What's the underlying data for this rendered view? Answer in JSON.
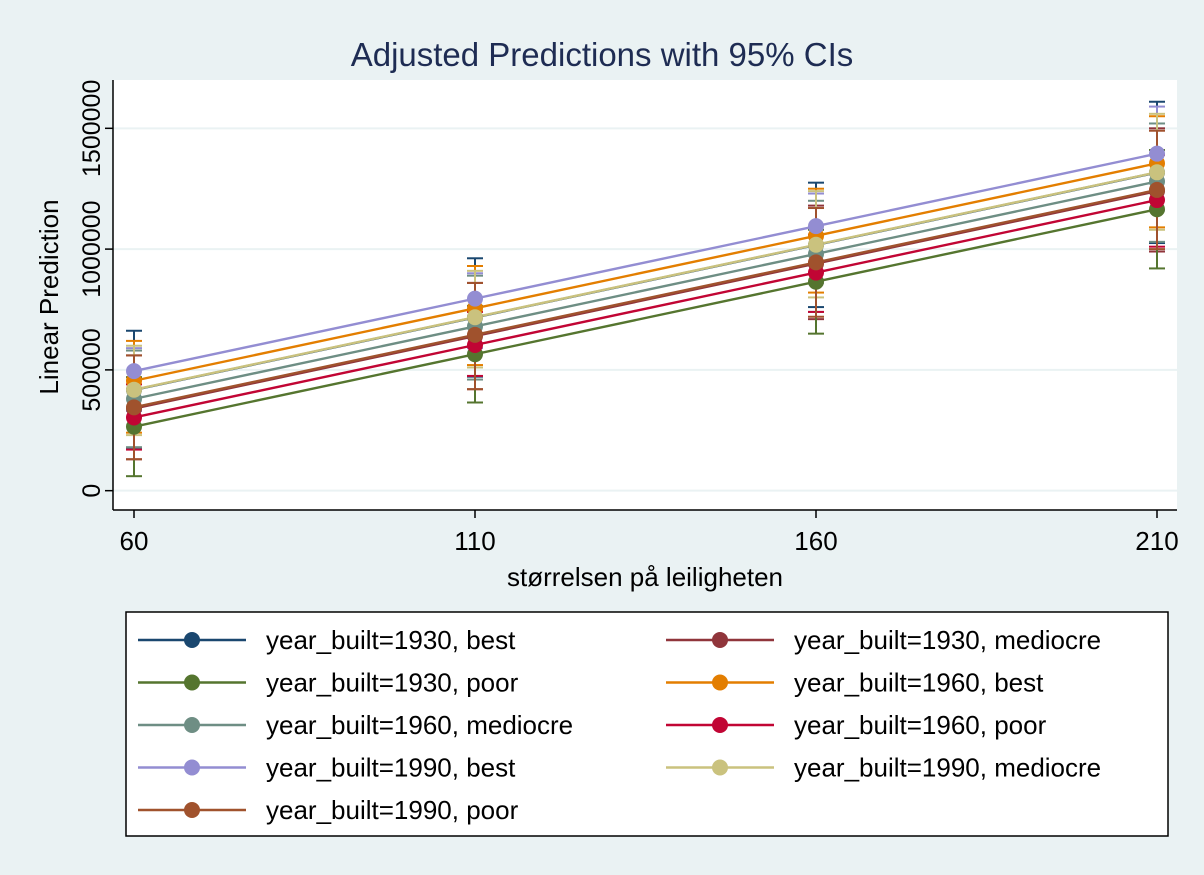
{
  "chart_data": {
    "type": "line",
    "title": "Adjusted Predictions with 95% CIs",
    "xlabel": "størrelsen på leiligheten",
    "ylabel": "Linear Prediction",
    "x": [
      60,
      110,
      160,
      210
    ],
    "x_ticks": [
      "60",
      "110",
      "160",
      "210"
    ],
    "ylim": [
      -80000,
      1700000
    ],
    "y_ticks": [
      {
        "value": 0,
        "label": "0"
      },
      {
        "value": 500000,
        "label": "500000"
      },
      {
        "value": 1000000,
        "label": "1000000"
      },
      {
        "value": 1500000,
        "label": "1500000"
      }
    ],
    "grid": true,
    "legend_position": "bottom",
    "series": [
      {
        "name": "year_built=1930, best",
        "color": "#1a476f",
        "values": [
          417000,
          717000,
          1017000,
          1317000
        ],
        "ci_low": [
          172000,
          472000,
          760000,
          1025000
        ],
        "ci_high": [
          662000,
          962000,
          1275000,
          1610000
        ]
      },
      {
        "name": "year_built=1930, mediocre",
        "color": "#90353b",
        "values": [
          340000,
          640000,
          940000,
          1240000
        ],
        "ci_low": [
          130000,
          420000,
          710000,
          990000
        ],
        "ci_high": [
          560000,
          860000,
          1180000,
          1500000
        ]
      },
      {
        "name": "year_built=1930, poor",
        "color": "#55752f",
        "values": [
          265000,
          565000,
          865000,
          1165000
        ],
        "ci_low": [
          60000,
          365000,
          650000,
          920000
        ],
        "ci_high": [
          470000,
          765000,
          1080000,
          1410000
        ]
      },
      {
        "name": "year_built=1960, best",
        "color": "#e37e00",
        "values": [
          455000,
          755000,
          1055000,
          1355000
        ],
        "ci_low": [
          240000,
          520000,
          820000,
          1090000
        ],
        "ci_high": [
          620000,
          930000,
          1250000,
          1550000
        ]
      },
      {
        "name": "year_built=1960, mediocre",
        "color": "#6e8e84",
        "values": [
          380000,
          680000,
          980000,
          1280000
        ],
        "ci_low": [
          180000,
          460000,
          740000,
          1030000
        ],
        "ci_high": [
          580000,
          890000,
          1200000,
          1520000
        ]
      },
      {
        "name": "year_built=1960, poor",
        "color": "#c10534",
        "values": [
          303000,
          603000,
          903000,
          1203000
        ],
        "ci_low": [
          170000,
          475000,
          740000,
          1010000
        ],
        "ci_high": [
          440000,
          740000,
          1060000,
          1390000
        ]
      },
      {
        "name": "year_built=1990, best",
        "color": "#938dd2",
        "values": [
          495000,
          795000,
          1095000,
          1395000
        ],
        "ci_low": [
          330000,
          590000,
          860000,
          1160000
        ],
        "ci_high": [
          590000,
          900000,
          1230000,
          1590000
        ]
      },
      {
        "name": "year_built=1990, mediocre",
        "color": "#cac27e",
        "values": [
          418000,
          718000,
          1018000,
          1318000
        ],
        "ci_low": [
          230000,
          510000,
          800000,
          1080000
        ],
        "ci_high": [
          600000,
          910000,
          1240000,
          1560000
        ]
      },
      {
        "name": "year_built=1990, poor",
        "color": "#a0522d",
        "values": [
          345000,
          645000,
          945000,
          1245000
        ],
        "ci_low": [
          130000,
          420000,
          720000,
          1000000
        ],
        "ci_high": [
          560000,
          860000,
          1170000,
          1490000
        ]
      }
    ]
  }
}
